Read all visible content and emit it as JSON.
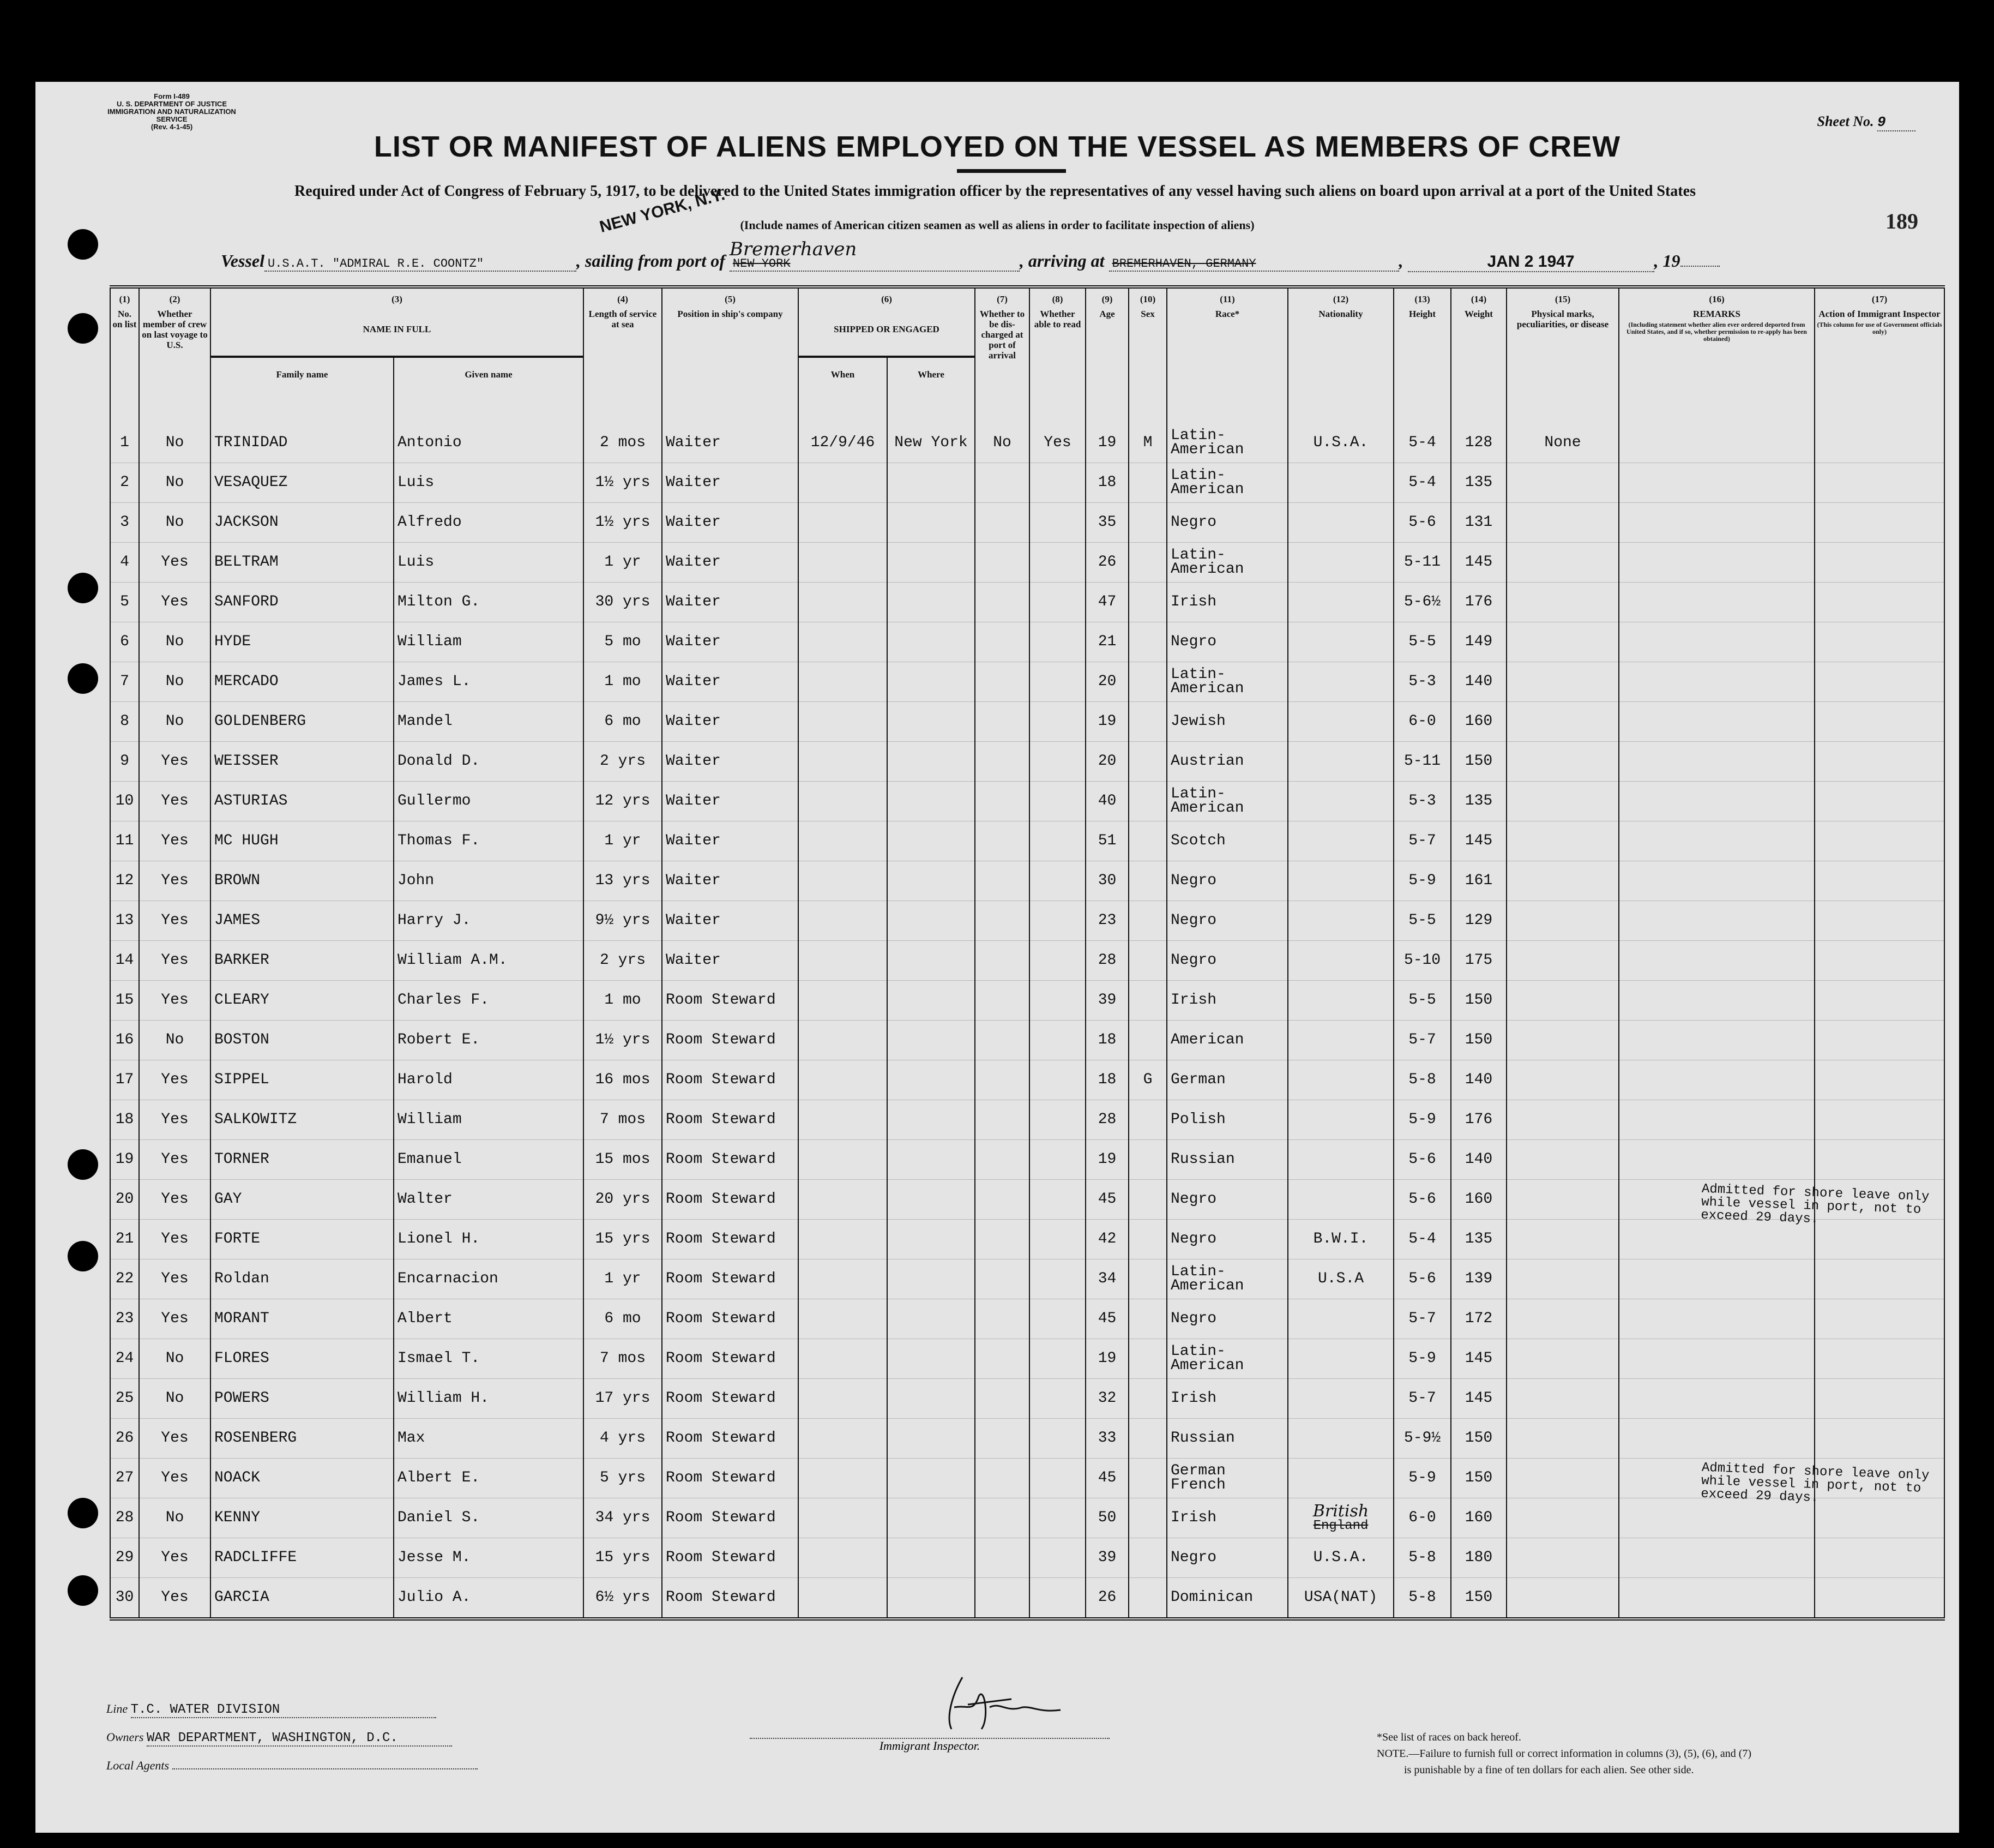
{
  "form": {
    "form_number": "Form I-489",
    "department": "U. S. DEPARTMENT OF JUSTICE",
    "service": "IMMIGRATION AND NATURALIZATION SERVICE",
    "revision": "(Rev. 4-1-45)"
  },
  "sheet": {
    "label": "Sheet No.",
    "value": "9"
  },
  "title": "LIST OR MANIFEST OF ALIENS EMPLOYED ON THE VESSEL AS MEMBERS OF CREW",
  "subtitle": "Required under Act of Congress of February 5, 1917, to be delivered to the United States immigration officer by the representatives of any vessel having such aliens on board upon arrival at a port of the United States",
  "subtitle_note": "(Include names of American citizen seamen as well as aliens in order to facilitate inspection of aliens)",
  "document_number": "189",
  "stamp": {
    "place": "NEW YORK, N.Y.",
    "date": "JAN 2 1947"
  },
  "vessel": {
    "label": "Vessel",
    "name": "U.S.A.T. \"ADMIRAL R.E. COONTZ\"",
    "sailing_label": ", sailing from port of",
    "sailing_from_struck": "NEW YORK",
    "sailing_from_handwritten": "Bremerhaven",
    "arriving_label": ", arriving at",
    "arriving_at_struck": "BREMERHAVEN, GERMANY",
    "year_label": "19"
  },
  "columns": {
    "c1": {
      "num": "(1)",
      "label": "No. on list"
    },
    "c2": {
      "num": "(2)",
      "label": "Whether member of crew on last voyage to U.S."
    },
    "c3": {
      "num": "(3)",
      "label": "NAME IN FULL",
      "family": "Family name",
      "given": "Given name"
    },
    "c4": {
      "num": "(4)",
      "label": "Length of service at sea"
    },
    "c5": {
      "num": "(5)",
      "label": "Position in ship's company"
    },
    "c6": {
      "num": "(6)",
      "label": "SHIPPED OR ENGAGED",
      "when": "When",
      "where": "Where"
    },
    "c7": {
      "num": "(7)",
      "label": "Whether to be dis-charged at port of arrival"
    },
    "c8": {
      "num": "(8)",
      "label": "Whether able to read"
    },
    "c9": {
      "num": "(9)",
      "label": "Age"
    },
    "c10": {
      "num": "(10)",
      "label": "Sex"
    },
    "c11": {
      "num": "(11)",
      "label": "Race*"
    },
    "c12": {
      "num": "(12)",
      "label": "Nationality"
    },
    "c13": {
      "num": "(13)",
      "label": "Height"
    },
    "c14": {
      "num": "(14)",
      "label": "Weight"
    },
    "c15": {
      "num": "(15)",
      "label": "Physical marks, peculiarities, or disease"
    },
    "c16": {
      "num": "(16)",
      "label": "REMARKS",
      "note": "(Including statement whether alien ever ordered deported from United States, and if so, whether permission to re-apply has been obtained)"
    },
    "c17": {
      "num": "(17)",
      "label": "Action of Immigrant Inspector",
      "note": "(This column for use of Government officials only)"
    }
  },
  "rows": [
    {
      "no": "1",
      "last": "No",
      "family": "TRINIDAD",
      "given": "Antonio",
      "service": "2 mos",
      "position": "Waiter",
      "when": "12/9/46",
      "where": "New York",
      "discharged": "No",
      "read": "Yes",
      "age": "19",
      "sex": "M",
      "race": "Latin-American",
      "nationality": "U.S.A.",
      "height": "5-4",
      "weight": "128",
      "marks": "None",
      "remarks": ""
    },
    {
      "no": "2",
      "last": "No",
      "family": "VESAQUEZ",
      "given": "Luis",
      "service": "1½ yrs",
      "position": "Waiter",
      "when": "",
      "where": "",
      "discharged": "",
      "read": "",
      "age": "18",
      "sex": "",
      "race": "Latin-American",
      "nationality": "",
      "height": "5-4",
      "weight": "135",
      "marks": "",
      "remarks": ""
    },
    {
      "no": "3",
      "last": "No",
      "family": "JACKSON",
      "given": "Alfredo",
      "service": "1½ yrs",
      "position": "Waiter",
      "when": "",
      "where": "",
      "discharged": "",
      "read": "",
      "age": "35",
      "sex": "",
      "race": "Negro",
      "nationality": "",
      "height": "5-6",
      "weight": "131",
      "marks": "",
      "remarks": ""
    },
    {
      "no": "4",
      "last": "Yes",
      "family": "BELTRAM",
      "given": "Luis",
      "service": "1 yr",
      "position": "Waiter",
      "when": "",
      "where": "",
      "discharged": "",
      "read": "",
      "age": "26",
      "sex": "",
      "race": "Latin-American",
      "nationality": "",
      "height": "5-11",
      "weight": "145",
      "marks": "",
      "remarks": ""
    },
    {
      "no": "5",
      "last": "Yes",
      "family": "SANFORD",
      "given": "Milton G.",
      "service": "30 yrs",
      "position": "Waiter",
      "when": "",
      "where": "",
      "discharged": "",
      "read": "",
      "age": "47",
      "sex": "",
      "race": "Irish",
      "nationality": "",
      "height": "5-6½",
      "weight": "176",
      "marks": "",
      "remarks": ""
    },
    {
      "no": "6",
      "last": "No",
      "family": "HYDE",
      "given": "William",
      "service": "5 mo",
      "position": "Waiter",
      "when": "",
      "where": "",
      "discharged": "",
      "read": "",
      "age": "21",
      "sex": "",
      "race": "Negro",
      "nationality": "",
      "height": "5-5",
      "weight": "149",
      "marks": "",
      "remarks": ""
    },
    {
      "no": "7",
      "last": "No",
      "family": "MERCADO",
      "given": "James L.",
      "service": "1 mo",
      "position": "Waiter",
      "when": "",
      "where": "",
      "discharged": "",
      "read": "",
      "age": "20",
      "sex": "",
      "race": "Latin-American",
      "nationality": "",
      "height": "5-3",
      "weight": "140",
      "marks": "",
      "remarks": ""
    },
    {
      "no": "8",
      "last": "No",
      "family": "GOLDENBERG",
      "given": "Mandel",
      "service": "6 mo",
      "position": "Waiter",
      "when": "",
      "where": "",
      "discharged": "",
      "read": "",
      "age": "19",
      "sex": "",
      "race": "Jewish",
      "nationality": "",
      "height": "6-0",
      "weight": "160",
      "marks": "",
      "remarks": ""
    },
    {
      "no": "9",
      "last": "Yes",
      "family": "WEISSER",
      "given": "Donald D.",
      "service": "2 yrs",
      "position": "Waiter",
      "when": "",
      "where": "",
      "discharged": "",
      "read": "",
      "age": "20",
      "sex": "",
      "race": "Austrian",
      "nationality": "",
      "height": "5-11",
      "weight": "150",
      "marks": "",
      "remarks": ""
    },
    {
      "no": "10",
      "last": "Yes",
      "family": "ASTURIAS",
      "given": "Gullermo",
      "service": "12 yrs",
      "position": "Waiter",
      "when": "",
      "where": "",
      "discharged": "",
      "read": "",
      "age": "40",
      "sex": "",
      "race": "Latin-American",
      "nationality": "",
      "height": "5-3",
      "weight": "135",
      "marks": "",
      "remarks": ""
    },
    {
      "no": "11",
      "last": "Yes",
      "family": "MC HUGH",
      "given": "Thomas F.",
      "service": "1 yr",
      "position": "Waiter",
      "when": "",
      "where": "",
      "discharged": "",
      "read": "",
      "age": "51",
      "sex": "",
      "race": "Scotch",
      "nationality": "",
      "height": "5-7",
      "weight": "145",
      "marks": "",
      "remarks": ""
    },
    {
      "no": "12",
      "last": "Yes",
      "family": "BROWN",
      "given": "John",
      "service": "13 yrs",
      "position": "Waiter",
      "when": "",
      "where": "",
      "discharged": "",
      "read": "",
      "age": "30",
      "sex": "",
      "race": "Negro",
      "nationality": "",
      "height": "5-9",
      "weight": "161",
      "marks": "",
      "remarks": ""
    },
    {
      "no": "13",
      "last": "Yes",
      "family": "JAMES",
      "given": "Harry J.",
      "service": "9½ yrs",
      "position": "Waiter",
      "when": "",
      "where": "",
      "discharged": "",
      "read": "",
      "age": "23",
      "sex": "",
      "race": "Negro",
      "nationality": "",
      "height": "5-5",
      "weight": "129",
      "marks": "",
      "remarks": ""
    },
    {
      "no": "14",
      "last": "Yes",
      "family": "BARKER",
      "given": "William A.M.",
      "service": "2 yrs",
      "position": "Waiter",
      "when": "",
      "where": "",
      "discharged": "",
      "read": "",
      "age": "28",
      "sex": "",
      "race": "Negro",
      "nationality": "",
      "height": "5-10",
      "weight": "175",
      "marks": "",
      "remarks": ""
    },
    {
      "no": "15",
      "last": "Yes",
      "family": "CLEARY",
      "given": "Charles F.",
      "service": "1 mo",
      "position": "Room Steward",
      "when": "",
      "where": "",
      "discharged": "",
      "read": "",
      "age": "39",
      "sex": "",
      "race": "Irish",
      "nationality": "",
      "height": "5-5",
      "weight": "150",
      "marks": "",
      "remarks": ""
    },
    {
      "no": "16",
      "last": "No",
      "family": "BOSTON",
      "given": "Robert E.",
      "service": "1½ yrs",
      "position": "Room Steward",
      "when": "",
      "where": "",
      "discharged": "",
      "read": "",
      "age": "18",
      "sex": "",
      "race": "American",
      "nationality": "",
      "height": "5-7",
      "weight": "150",
      "marks": "",
      "remarks": ""
    },
    {
      "no": "17",
      "last": "Yes",
      "family": "SIPPEL",
      "given": "Harold",
      "service": "16 mos",
      "position": "Room Steward",
      "when": "",
      "where": "",
      "discharged": "",
      "read": "",
      "age": "18",
      "sex": "G",
      "race": "German",
      "nationality": "",
      "height": "5-8",
      "weight": "140",
      "marks": "",
      "remarks": ""
    },
    {
      "no": "18",
      "last": "Yes",
      "family": "SALKOWITZ",
      "given": "William",
      "service": "7 mos",
      "position": "Room Steward",
      "when": "",
      "where": "",
      "discharged": "",
      "read": "",
      "age": "28",
      "sex": "",
      "race": "Polish",
      "nationality": "",
      "height": "5-9",
      "weight": "176",
      "marks": "",
      "remarks": ""
    },
    {
      "no": "19",
      "last": "Yes",
      "family": "TORNER",
      "given": "Emanuel",
      "service": "15 mos",
      "position": "Room Steward",
      "when": "",
      "where": "",
      "discharged": "",
      "read": "",
      "age": "19",
      "sex": "",
      "race": "Russian",
      "nationality": "",
      "height": "5-6",
      "weight": "140",
      "marks": "",
      "remarks": ""
    },
    {
      "no": "20",
      "last": "Yes",
      "family": "GAY",
      "given": "Walter",
      "service": "20 yrs",
      "position": "Room Steward",
      "when": "",
      "where": "",
      "discharged": "",
      "read": "",
      "age": "45",
      "sex": "",
      "race": "Negro",
      "nationality": "",
      "height": "5-6",
      "weight": "160",
      "marks": "",
      "remarks": ""
    },
    {
      "no": "21",
      "last": "Yes",
      "family": "FORTE",
      "given": "Lionel H.",
      "service": "15 yrs",
      "position": "Room Steward",
      "when": "",
      "where": "",
      "discharged": "",
      "read": "",
      "age": "42",
      "sex": "",
      "race": "Negro",
      "nationality": "B.W.I.",
      "height": "5-4",
      "weight": "135",
      "marks": "",
      "remarks": "Admitted for shore leave only while vessel in port, not to exceed 29 days."
    },
    {
      "no": "22",
      "last": "Yes",
      "family": "Roldan",
      "given": "Encarnacion",
      "service": "1 yr",
      "position": "Room Steward",
      "when": "",
      "where": "",
      "discharged": "",
      "read": "",
      "age": "34",
      "sex": "",
      "race": "Latin-American",
      "nationality": "U.S.A",
      "height": "5-6",
      "weight": "139",
      "marks": "",
      "remarks": ""
    },
    {
      "no": "23",
      "last": "Yes",
      "family": "MORANT",
      "given": "Albert",
      "service": "6 mo",
      "position": "Room Steward",
      "when": "",
      "where": "",
      "discharged": "",
      "read": "",
      "age": "45",
      "sex": "",
      "race": "Negro",
      "nationality": "",
      "height": "5-7",
      "weight": "172",
      "marks": "",
      "remarks": ""
    },
    {
      "no": "24",
      "last": "No",
      "family": "FLORES",
      "given": "Ismael T.",
      "service": "7 mos",
      "position": "Room Steward",
      "when": "",
      "where": "",
      "discharged": "",
      "read": "",
      "age": "19",
      "sex": "",
      "race": "Latin-American",
      "nationality": "",
      "height": "5-9",
      "weight": "145",
      "marks": "",
      "remarks": ""
    },
    {
      "no": "25",
      "last": "No",
      "family": "POWERS",
      "given": "William H.",
      "service": "17 yrs",
      "position": "Room Steward",
      "when": "",
      "where": "",
      "discharged": "",
      "read": "",
      "age": "32",
      "sex": "",
      "race": "Irish",
      "nationality": "",
      "height": "5-7",
      "weight": "145",
      "marks": "",
      "remarks": ""
    },
    {
      "no": "26",
      "last": "Yes",
      "family": "ROSENBERG",
      "given": "Max",
      "service": "4 yrs",
      "position": "Room Steward",
      "when": "",
      "where": "",
      "discharged": "",
      "read": "",
      "age": "33",
      "sex": "",
      "race": "Russian",
      "nationality": "",
      "height": "5-9½",
      "weight": "150",
      "marks": "",
      "remarks": ""
    },
    {
      "no": "27",
      "last": "Yes",
      "family": "NOACK",
      "given": "Albert E.",
      "service": "5 yrs",
      "position": "Room Steward",
      "when": "",
      "where": "",
      "discharged": "",
      "read": "",
      "age": "45",
      "sex": "",
      "race": "German French",
      "nationality": "",
      "height": "5-9",
      "weight": "150",
      "marks": "",
      "remarks": ""
    },
    {
      "no": "28",
      "last": "No",
      "family": "KENNY",
      "given": "Daniel S.",
      "service": "34 yrs",
      "position": "Room Steward",
      "when": "",
      "where": "",
      "discharged": "",
      "read": "",
      "age": "50",
      "sex": "",
      "race": "Irish",
      "nationality": "British",
      "nationality_struck": "England",
      "height": "6-0",
      "weight": "160",
      "marks": "",
      "remarks": "Admitted for shore leave only while vessel in port, not to exceed 29 days."
    },
    {
      "no": "29",
      "last": "Yes",
      "family": "RADCLIFFE",
      "given": "Jesse M.",
      "service": "15 yrs",
      "position": "Room Steward",
      "when": "",
      "where": "",
      "discharged": "",
      "read": "",
      "age": "39",
      "sex": "",
      "race": "Negro",
      "nationality": "U.S.A.",
      "height": "5-8",
      "weight": "180",
      "marks": "",
      "remarks": ""
    },
    {
      "no": "30",
      "last": "Yes",
      "family": "GARCIA",
      "given": "Julio A.",
      "service": "6½ yrs",
      "position": "Room Steward",
      "when": "",
      "where": "",
      "discharged": "",
      "read": "",
      "age": "26",
      "sex": "",
      "race": "Dominican",
      "nationality": "USA(NAT)",
      "height": "5-8",
      "weight": "150",
      "marks": "",
      "remarks": ""
    }
  ],
  "footer": {
    "line_label": "Line",
    "line_value": "T.C. WATER DIVISION",
    "owners_label": "Owners",
    "owners_value": "WAR DEPARTMENT, WASHINGTON, D.C.",
    "agents_label": "Local Agents",
    "agents_value": "",
    "inspector_label": "Immigrant Inspector.",
    "races_note": "*See list of races on back hereof.",
    "penalty_note": "NOTE.—Failure to furnish full or correct information in columns (3), (5), (6), and (7)",
    "penalty_note2": "is punishable by a fine of ten dollars for each alien.  See other side."
  }
}
